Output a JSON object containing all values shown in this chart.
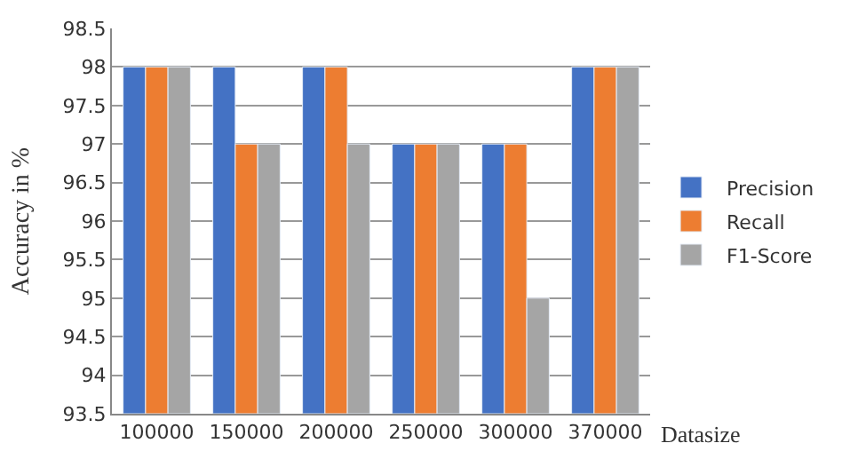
{
  "chart_data": {
    "type": "bar",
    "xlabel": "Datasize",
    "ylabel": "Accuracy in %",
    "categories": [
      "100000",
      "150000",
      "200000",
      "250000",
      "300000",
      "370000"
    ],
    "series": [
      {
        "name": "Precision",
        "color": "#4472c4",
        "values": [
          98,
          98,
          98,
          97,
          97,
          98
        ]
      },
      {
        "name": "Recall",
        "color": "#ed7d31",
        "values": [
          98,
          97,
          98,
          97,
          97,
          98
        ]
      },
      {
        "name": "F1-Score",
        "color": "#a5a5a5",
        "values": [
          98,
          97,
          97,
          97,
          95,
          98
        ]
      }
    ],
    "ylim": [
      93.5,
      98.5
    ],
    "yticks": [
      93.5,
      94,
      94.5,
      95,
      95.5,
      96,
      96.5,
      97,
      97.5,
      98,
      98.5
    ],
    "grid": "y",
    "legend": "right"
  }
}
